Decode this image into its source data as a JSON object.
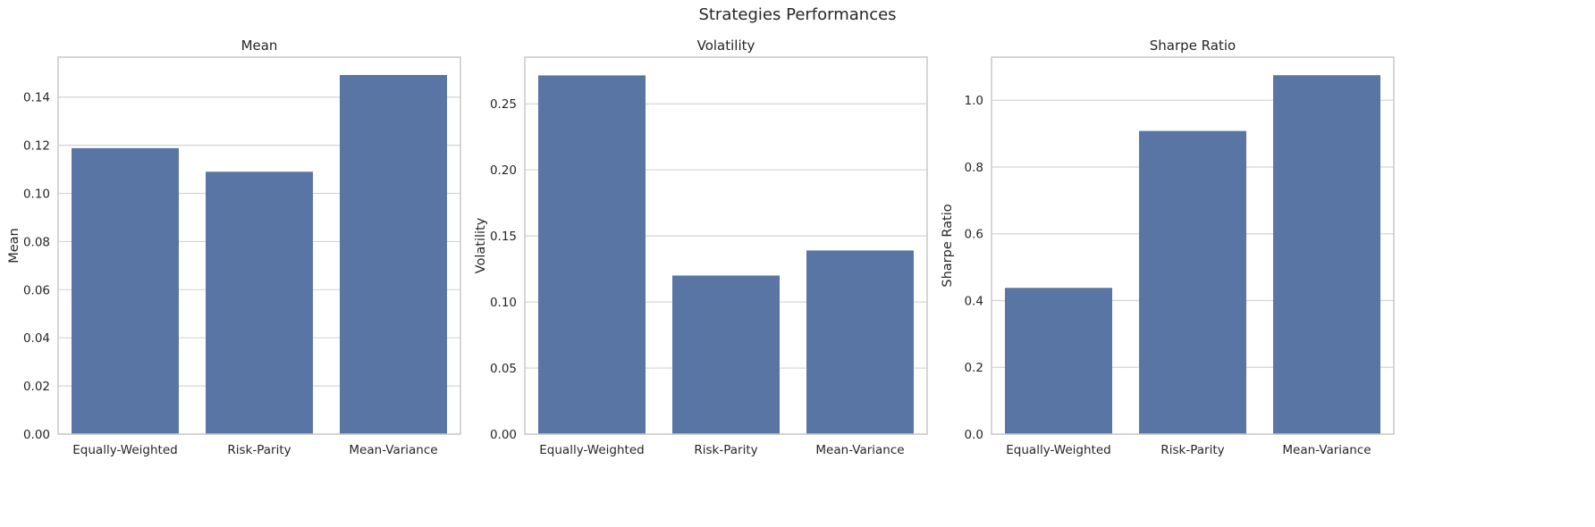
{
  "figure": {
    "suptitle": "Strategies Performances"
  },
  "style": {
    "bar_color": "#5975a4",
    "grid_color": "#d4d4d4",
    "spine_color": "#c8c8c8",
    "text_color": "#262626"
  },
  "chart_data": [
    {
      "type": "bar",
      "title": "Mean",
      "xlabel": "",
      "ylabel": "Mean",
      "categories": [
        "Equally-Weighted",
        "Risk-Parity",
        "Mean-Variance"
      ],
      "values": [
        0.1188,
        0.109,
        0.1492
      ],
      "ylim": [
        0,
        0.1566
      ],
      "yticks": [
        0,
        0.02,
        0.04,
        0.06,
        0.08,
        0.1,
        0.12,
        0.14
      ],
      "ytick_labels": [
        "0.00",
        "0.02",
        "0.04",
        "0.06",
        "0.08",
        "0.10",
        "0.12",
        "0.14"
      ],
      "grid": "y"
    },
    {
      "type": "bar",
      "title": "Volatility",
      "xlabel": "",
      "ylabel": "Volatility",
      "categories": [
        "Equally-Weighted",
        "Risk-Parity",
        "Mean-Variance"
      ],
      "values": [
        0.2715,
        0.12,
        0.139
      ],
      "ylim": [
        0,
        0.2853
      ],
      "yticks": [
        0,
        0.05,
        0.1,
        0.15,
        0.2,
        0.25
      ],
      "ytick_labels": [
        "0.00",
        "0.05",
        "0.10",
        "0.15",
        "0.20",
        "0.25"
      ],
      "grid": "y"
    },
    {
      "type": "bar",
      "title": "Sharpe Ratio",
      "xlabel": "",
      "ylabel": "Sharpe Ratio",
      "categories": [
        "Equally-Weighted",
        "Risk-Parity",
        "Mean-Variance"
      ],
      "values": [
        0.438,
        0.908,
        1.075
      ],
      "ylim": [
        0,
        1.129
      ],
      "yticks": [
        0,
        0.2,
        0.4,
        0.6,
        0.8,
        1.0
      ],
      "ytick_labels": [
        "0.0",
        "0.2",
        "0.4",
        "0.6",
        "0.8",
        "1.0"
      ],
      "grid": "y"
    }
  ]
}
